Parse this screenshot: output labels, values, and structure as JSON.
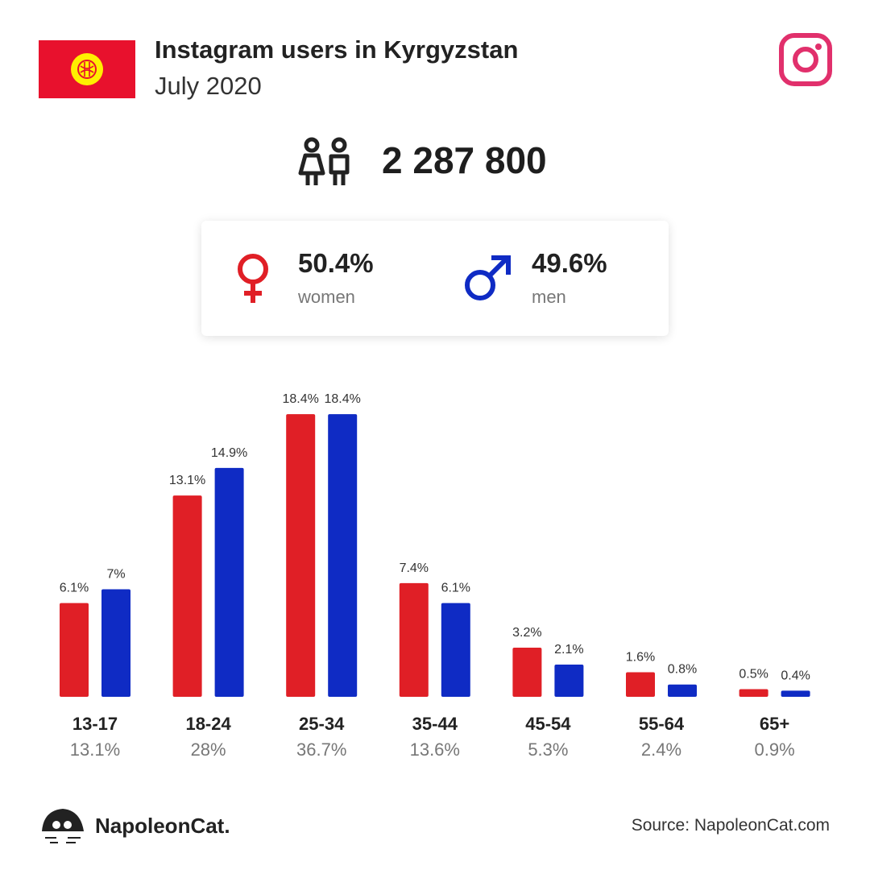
{
  "brand": "NapoleonCat.",
  "chart_data": {
    "type": "bar",
    "title": "Instagram users in Kyrgyzstan",
    "subtitle": "July 2020",
    "users": "2 287 800",
    "source": "Source: NapoleonCat.com",
    "categories": [
      "13-17",
      "18-24",
      "25-34",
      "35-44",
      "45-54",
      "55-64",
      "65+"
    ],
    "totals": [
      13.1,
      28,
      36.7,
      13.6,
      5.3,
      2.4,
      0.9
    ],
    "totals_labels": [
      "13.1%",
      "28%",
      "36.7%",
      "13.6%",
      "5.3%",
      "2.4%",
      "0.9%"
    ],
    "series": [
      {
        "name": "women",
        "color": "#e01f26",
        "share": 50.4,
        "share_label": "50.4%",
        "values": [
          6.1,
          13.1,
          18.4,
          7.4,
          3.2,
          1.6,
          0.5
        ],
        "value_labels": [
          "6.1%",
          "13.1%",
          "18.4%",
          "7.4%",
          "3.2%",
          "1.6%",
          "0.5%"
        ]
      },
      {
        "name": "men",
        "color": "#0f2bc4",
        "share": 49.6,
        "share_label": "49.6%",
        "values": [
          7,
          14.9,
          18.4,
          6.1,
          2.1,
          0.8,
          0.4
        ],
        "value_labels": [
          "7%",
          "14.9%",
          "18.4%",
          "6.1%",
          "2.1%",
          "0.8%",
          "0.4%"
        ]
      }
    ],
    "ylim": [
      0,
      20
    ]
  }
}
